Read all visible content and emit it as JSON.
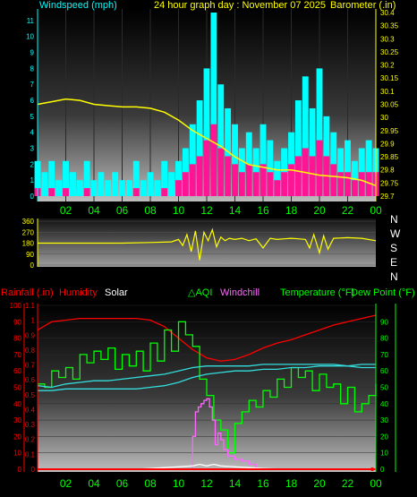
{
  "header": {
    "wind_label": "Windspeed (mph)",
    "title": "24 hour graph day : November 07 2025",
    "baro_label": "Barometer (.in)"
  },
  "compass": [
    "N",
    "W",
    "S",
    "E",
    "N"
  ],
  "legend": {
    "rain": "Rainfall (.in)",
    "humidity": "Humidity",
    "solar": "Solar",
    "aqi": "AQI",
    "windchill": "Windchill",
    "temperature": "Temperature (°F)",
    "dewpoint": "Dew Point (°F)"
  },
  "colors": {
    "wind_label": "#00ffff",
    "header_text": "#ffff00",
    "gust": "#00ffff",
    "wind": "#ff1493",
    "barometer": "#ffff00",
    "direction": "#ffff00",
    "rain": "#ff0000",
    "humidity": "#ff0000",
    "solar": "#ffffff",
    "aqi": "#00ff00",
    "windchill": "#ff66ff",
    "temperature": "#00ff00",
    "dewpoint": "#00ff00",
    "temp_line": "#00ff00",
    "dew_line": "#33dddd",
    "axis_left_bottom": "#ff0000",
    "axis_right_bottom": "#00ff00",
    "x_ticks": "#00ff00"
  },
  "chart_data": [
    {
      "type": "bar",
      "title": "24 hour graph day : November 07 2025",
      "ylabel": "Windspeed (mph)",
      "y2label": "Barometer (.in)",
      "ylim": [
        0,
        11.5
      ],
      "y2lim": [
        29.7,
        30.4
      ],
      "y_ticks": [
        0,
        1,
        2,
        3,
        4,
        5,
        6,
        7,
        8,
        9,
        10,
        11
      ],
      "y2_ticks": [
        "29.7",
        "29.75",
        "29.8",
        "29.85",
        "29.9",
        "29.95",
        "30",
        "30.05",
        "30.1",
        "30.15",
        "30.2",
        "30.25",
        "30.3",
        "30.35",
        "30.4"
      ],
      "x_ticks": [
        "02",
        "04",
        "06",
        "08",
        "10",
        "12",
        "14",
        "16",
        "18",
        "20",
        "22",
        "00"
      ],
      "series": [
        {
          "name": "gust",
          "x": [
            0,
            0.5,
            1,
            1.5,
            2,
            2.5,
            3,
            3.5,
            4,
            4.5,
            5,
            5.5,
            6,
            6.5,
            7,
            7.5,
            8,
            8.5,
            9,
            9.5,
            10,
            10.5,
            11,
            11.5,
            12,
            12.5,
            13,
            13.5,
            14,
            14.5,
            15,
            15.5,
            16,
            16.5,
            17,
            17.5,
            18,
            18.5,
            19,
            19.5,
            20,
            20.5,
            21,
            21.5,
            22,
            22.5,
            23,
            23.5,
            24
          ],
          "values": [
            2.2,
            1.5,
            2.2,
            1,
            2.2,
            1.5,
            1,
            2.2,
            1,
            1.5,
            1,
            1.5,
            1,
            1,
            2.2,
            1,
            1.5,
            1,
            2.2,
            1.5,
            2.2,
            3,
            4.5,
            6,
            8,
            11.5,
            7,
            5.5,
            4.5,
            3,
            4,
            3,
            4.5,
            3.5,
            2.2,
            3,
            4,
            6,
            7.5,
            5.5,
            8,
            5,
            4,
            3,
            3.5,
            2.2,
            3,
            3.5,
            3
          ]
        },
        {
          "name": "wind",
          "x": [
            0,
            0.5,
            1,
            1.5,
            2,
            2.5,
            3,
            3.5,
            4,
            4.5,
            5,
            5.5,
            6,
            6.5,
            7,
            7.5,
            8,
            8.5,
            9,
            9.5,
            10,
            10.5,
            11,
            11.5,
            12,
            12.5,
            13,
            13.5,
            14,
            14.5,
            15,
            15.5,
            16,
            16.5,
            17,
            17.5,
            18,
            18.5,
            19,
            19.5,
            20,
            20.5,
            21,
            21.5,
            22,
            22.5,
            23,
            23.5,
            24
          ],
          "values": [
            0.5,
            0,
            0.5,
            0,
            0.5,
            0,
            0,
            0.5,
            0,
            0,
            0,
            0,
            0,
            0,
            0.5,
            0,
            0,
            0,
            0.5,
            0,
            1,
            1.5,
            2,
            2.5,
            3.5,
            4.5,
            3,
            2.5,
            2,
            1.5,
            2,
            1.5,
            2,
            1.5,
            1,
            1.5,
            2,
            2.5,
            3,
            2.5,
            3.5,
            2.5,
            2,
            1.5,
            1.5,
            1,
            1.5,
            1.5,
            1.5
          ]
        },
        {
          "name": "barometer",
          "x": [
            0,
            1,
            2,
            3,
            4,
            5,
            6,
            7,
            8,
            9,
            10,
            11,
            12,
            13,
            14,
            15,
            16,
            17,
            18,
            19,
            20,
            21,
            22,
            23,
            24
          ],
          "values": [
            30.05,
            30.06,
            30.07,
            30.065,
            30.05,
            30.045,
            30.04,
            30.04,
            30.035,
            30.02,
            29.99,
            29.95,
            29.92,
            29.89,
            29.85,
            29.82,
            29.81,
            29.8,
            29.8,
            29.79,
            29.78,
            29.775,
            29.77,
            29.76,
            29.74
          ]
        }
      ]
    },
    {
      "type": "line",
      "ylabel": "Wind direction",
      "ylim": [
        0,
        360
      ],
      "y_ticks": [
        0,
        90,
        180,
        270,
        360
      ],
      "series": [
        {
          "name": "direction",
          "x": [
            0,
            2,
            4,
            6,
            8,
            9.5,
            10,
            10.3,
            10.6,
            10.9,
            11.2,
            11.5,
            11.8,
            12.1,
            12.4,
            12.7,
            13,
            13.3,
            13.6,
            14,
            14.5,
            15,
            15.5,
            16,
            16.5,
            17,
            17.5,
            18,
            18.5,
            19,
            19.3,
            19.6,
            20,
            20.3,
            20.6,
            21,
            22,
            23,
            24
          ],
          "values": [
            180,
            180,
            180,
            180,
            185,
            190,
            210,
            160,
            250,
            110,
            280,
            40,
            270,
            200,
            290,
            150,
            230,
            200,
            220,
            210,
            220,
            200,
            215,
            140,
            220,
            210,
            215,
            220,
            215,
            210,
            140,
            250,
            100,
            240,
            130,
            220,
            225,
            220,
            200
          ]
        }
      ]
    },
    {
      "type": "line",
      "ylabel": "Rainfall (.in)",
      "y2label": "Temperature (°F)",
      "ylim": [
        0,
        100
      ],
      "y2lim": [
        0,
        100
      ],
      "rain_ticks": [
        "0",
        "0.1",
        "0.2",
        "0.3",
        "0.4",
        "0.5",
        "0.6",
        "0.7",
        "0.8",
        "0.9",
        "1",
        "1.1"
      ],
      "percent_ticks": [
        0,
        10,
        20,
        30,
        40,
        50,
        60,
        70,
        80,
        90,
        100
      ],
      "temp_ticks": [
        0,
        10,
        20,
        30,
        40,
        50,
        60,
        70,
        80,
        90
      ],
      "x_ticks": [
        "02",
        "04",
        "06",
        "08",
        "10",
        "12",
        "14",
        "16",
        "18",
        "20",
        "22",
        "00"
      ],
      "series": [
        {
          "name": "humidity",
          "x": [
            0,
            1,
            2,
            3,
            4,
            5,
            6,
            7,
            8,
            9,
            10,
            11,
            12,
            13,
            14,
            15,
            16,
            17,
            18,
            19,
            20,
            21,
            22,
            23,
            24
          ],
          "values": [
            85,
            90,
            91,
            92,
            92,
            92,
            92,
            92,
            91,
            87,
            80,
            73,
            68,
            66,
            67,
            70,
            74,
            77,
            79,
            82,
            85,
            88,
            90,
            92,
            94
          ]
        },
        {
          "name": "temperature",
          "x": [
            0,
            0.5,
            1,
            1.5,
            2,
            2.5,
            3,
            3.5,
            4,
            4.5,
            5,
            5.5,
            6,
            6.5,
            7,
            7.5,
            8,
            8.5,
            9,
            9.5,
            10,
            10.5,
            11,
            11.5,
            12,
            12.5,
            13,
            13.5,
            14,
            14.5,
            15,
            15.5,
            16,
            16.5,
            17,
            17.5,
            18,
            18.5,
            19,
            19.5,
            20,
            20.5,
            21,
            21.5,
            22,
            22.5,
            23,
            23.5,
            24
          ],
          "values": [
            52,
            50,
            60,
            56,
            62,
            55,
            70,
            65,
            72,
            67,
            74,
            61,
            70,
            63,
            72,
            60,
            77,
            66,
            85,
            72,
            90,
            82,
            75,
            55,
            45,
            30,
            24,
            10,
            28,
            35,
            42,
            38,
            48,
            44,
            55,
            50,
            62,
            56,
            60,
            48,
            58,
            50,
            52,
            40,
            50,
            35,
            40,
            45,
            52
          ]
        },
        {
          "name": "dewpoint",
          "x": [
            0,
            1,
            2,
            3,
            4,
            5,
            6,
            7,
            8,
            9,
            10,
            11,
            12,
            13,
            14,
            15,
            16,
            17,
            18,
            19,
            20,
            21,
            22,
            23,
            24
          ],
          "values": [
            51,
            50,
            52,
            53,
            54,
            54,
            55,
            56,
            57,
            58,
            60,
            62,
            63,
            63,
            63,
            63,
            64,
            64,
            64,
            64,
            64,
            64,
            63,
            62,
            62
          ]
        },
        {
          "name": "dewpoint_lower",
          "x": [
            0,
            1,
            2,
            3,
            4,
            5,
            6,
            7,
            8,
            9,
            10,
            11,
            12,
            13,
            14,
            15,
            16,
            17,
            18,
            19,
            20,
            21,
            22,
            23,
            24
          ],
          "values": [
            48,
            48,
            49,
            49,
            49,
            49,
            49,
            49,
            50,
            51,
            53,
            56,
            58,
            59,
            60,
            60,
            61,
            61,
            62,
            62,
            63,
            63,
            63,
            64,
            64
          ]
        },
        {
          "name": "windchill",
          "x": [
            10.8,
            11,
            11.2,
            11.4,
            11.6,
            11.8,
            12,
            12.2,
            12.4,
            12.6,
            12.8,
            13,
            13.2,
            13.5,
            14,
            14.5,
            15,
            15.5
          ],
          "values": [
            0,
            20,
            35,
            38,
            40,
            42,
            43,
            38,
            30,
            15,
            22,
            18,
            12,
            8,
            6,
            5,
            3,
            0
          ]
        },
        {
          "name": "solar",
          "x": [
            7,
            8,
            9,
            10,
            11,
            11.5,
            12,
            12.5,
            13,
            14,
            15,
            16,
            17.5
          ],
          "values": [
            0,
            0.5,
            1,
            1.5,
            2,
            3,
            2,
            3,
            2,
            1.5,
            1,
            0.5,
            0
          ]
        },
        {
          "name": "rain",
          "x": [
            0,
            24
          ],
          "values": [
            0,
            0
          ]
        }
      ]
    }
  ]
}
